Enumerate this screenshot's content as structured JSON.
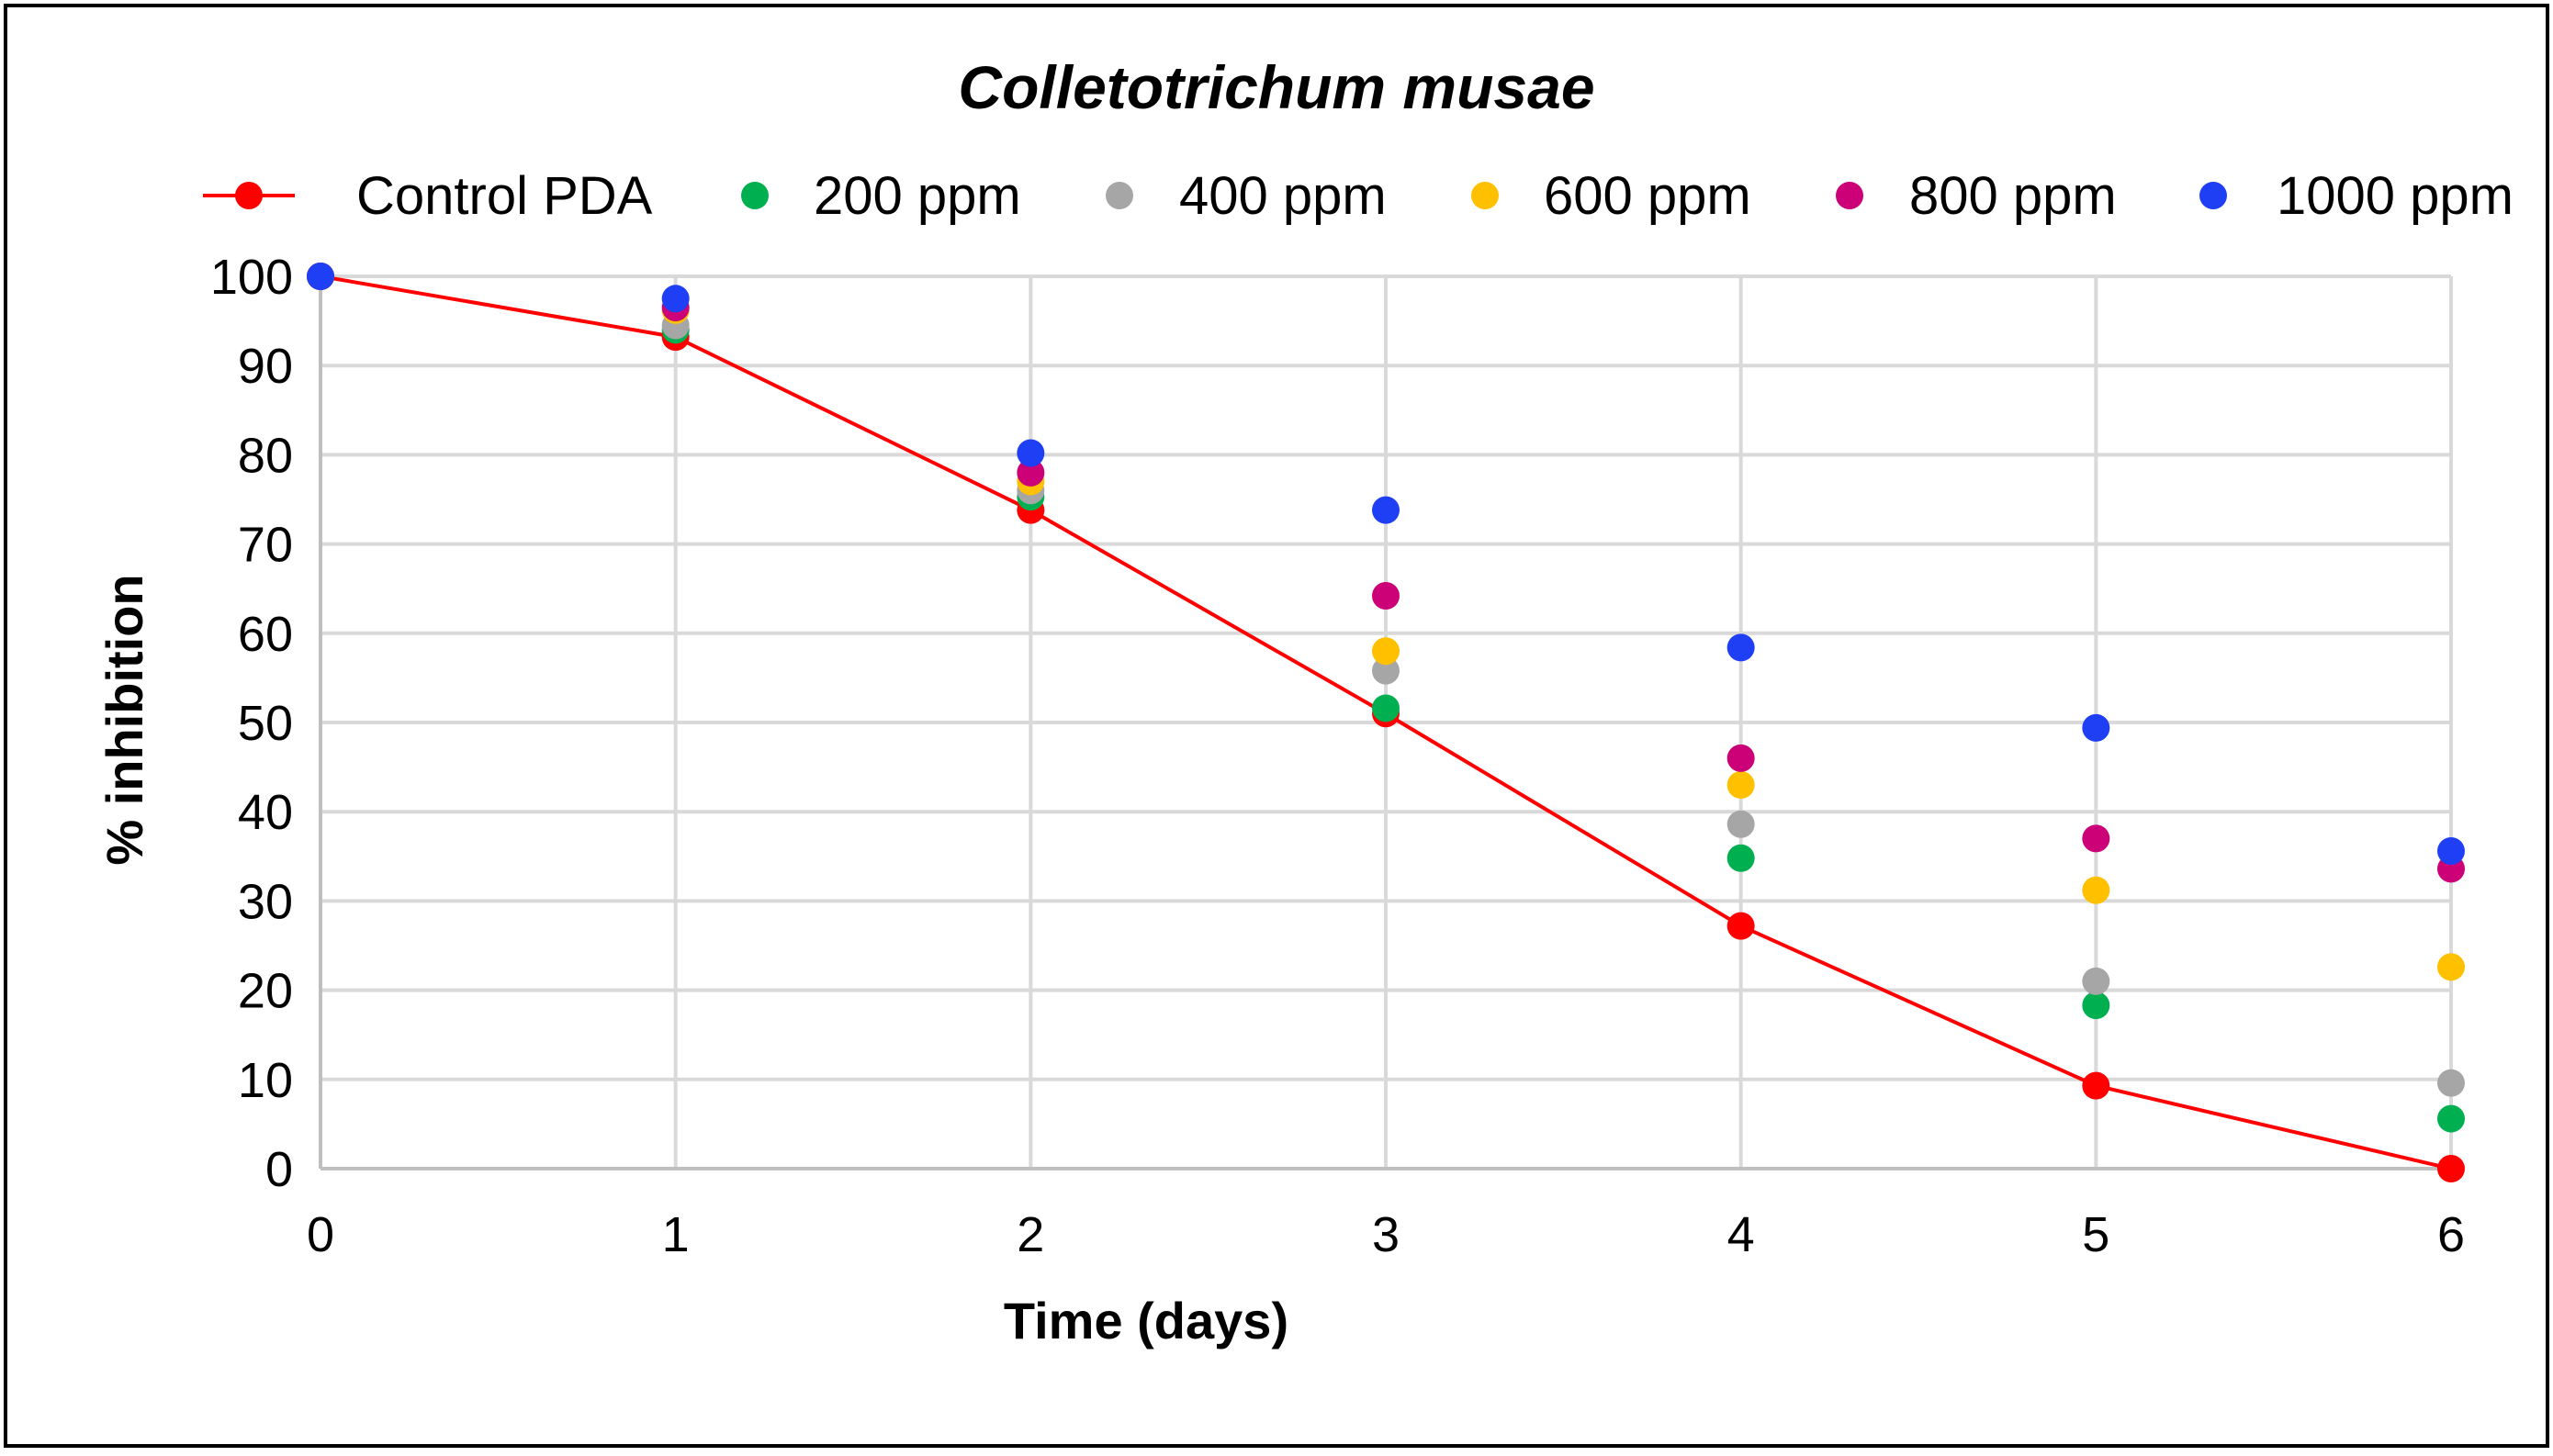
{
  "chart_data": {
    "type": "line",
    "title": "Colletotrichum musae",
    "xlabel": "Time (days)",
    "ylabel": "% inhibition",
    "x": [
      0,
      1,
      2,
      3,
      4,
      5,
      6
    ],
    "xlim": [
      0,
      6
    ],
    "ylim": [
      0,
      100
    ],
    "x_ticks": [
      "0",
      "1",
      "2",
      "3",
      "4",
      "5",
      "6"
    ],
    "y_ticks": [
      "0",
      "10",
      "20",
      "30",
      "40",
      "50",
      "60",
      "70",
      "80",
      "90",
      "100"
    ],
    "grid": true,
    "legend_position": "top",
    "series": [
      {
        "name": "Control PDA",
        "color": "#ff0000",
        "style": "line-marker",
        "values": [
          100,
          93.2,
          73.8,
          51,
          27.2,
          9.3,
          0
        ]
      },
      {
        "name": "200 ppm",
        "color": "#00b050",
        "style": "marker",
        "values": [
          100,
          94,
          75.3,
          51.6,
          34.8,
          18.3,
          5.6
        ]
      },
      {
        "name": "400 ppm",
        "color": "#a6a6a6",
        "style": "marker",
        "values": [
          100,
          94.5,
          76,
          55.8,
          38.6,
          21,
          9.6
        ]
      },
      {
        "name": "600 ppm",
        "color": "#ffc000",
        "style": "marker",
        "values": [
          100,
          96.2,
          77,
          58,
          43,
          31.2,
          22.6
        ]
      },
      {
        "name": "800 ppm",
        "color": "#cc0077",
        "style": "marker",
        "values": [
          100,
          96.5,
          78,
          64.2,
          46,
          37,
          33.6
        ]
      },
      {
        "name": "1000 ppm",
        "color": "#1f3ff5",
        "style": "marker",
        "values": [
          100,
          97.5,
          80.2,
          73.8,
          58.4,
          49.4,
          35.6
        ]
      }
    ]
  }
}
